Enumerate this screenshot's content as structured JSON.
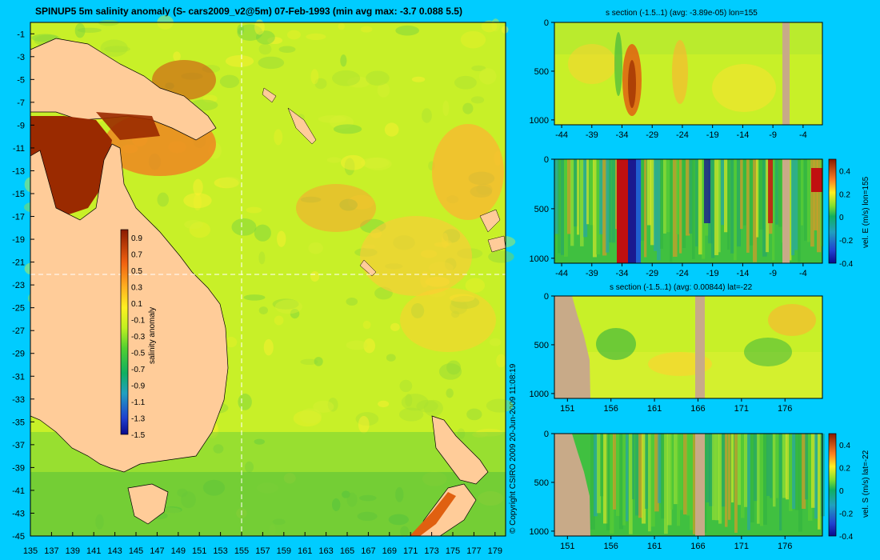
{
  "main_title": "SPINUP5 5m salinity anomaly (S- cars2009_v2@5m) 07-Feb-1993 (min avg max: -3.7 0.088 5.5)",
  "copyright": "© Copyright CSIRO 2009   20-Jun-2009 11:08:19",
  "colors": {
    "background": "#00ccff",
    "land": "#ffcc99",
    "section_land": "#c8aa88",
    "ocean_base": "#c8f028"
  },
  "chart_data": [
    {
      "type": "heatmap",
      "title": "SPINUP5 5m salinity anomaly (S- cars2009_v2@5m) 07-Feb-1993 (min avg max: -3.7 0.088 5.5)",
      "x_ticks": [
        "135",
        "137",
        "139",
        "141",
        "143",
        "145",
        "147",
        "149",
        "151",
        "153",
        "155",
        "157",
        "159",
        "161",
        "163",
        "165",
        "167",
        "169",
        "171",
        "173",
        "175",
        "177",
        "179"
      ],
      "y_ticks": [
        "-1",
        "-3",
        "-5",
        "-7",
        "-9",
        "-11",
        "-13",
        "-15",
        "-17",
        "-19",
        "-21",
        "-23",
        "-25",
        "-27",
        "-29",
        "-31",
        "-33",
        "-35",
        "-37",
        "-39",
        "-41",
        "-43",
        "-45"
      ],
      "xlim": [
        135,
        180
      ],
      "ylim": [
        -45,
        0
      ],
      "section_lines": {
        "lon": 155,
        "lat": -22
      },
      "colorbar": {
        "label": "salinity anomaly",
        "ticks": [
          "0.9",
          "0.7",
          "0.5",
          "0.3",
          "0.1",
          "-0.1",
          "-0.3",
          "-0.5",
          "-0.7",
          "-0.9",
          "-1.1",
          "-1.3",
          "-1.5"
        ],
        "range": [
          -1.5,
          1.0
        ]
      }
    },
    {
      "type": "heatmap",
      "title": "s section (-1.5..1) (avg: -3.89e-05) lon=155",
      "x_ticks": [
        "-44",
        "-39",
        "-34",
        "-29",
        "-24",
        "-19",
        "-14",
        "-9",
        "-4"
      ],
      "y_ticks": [
        "0",
        "500",
        "1000"
      ]
    },
    {
      "type": "heatmap",
      "title": "",
      "x_ticks": [
        "-44",
        "-39",
        "-34",
        "-29",
        "-24",
        "-19",
        "-14",
        "-9",
        "-4"
      ],
      "y_ticks": [
        "0",
        "500",
        "1000"
      ],
      "colorbar": {
        "label": "vel. E (m/s) lon=155",
        "ticks": [
          "0.4",
          "0.2",
          "0",
          "-0.2",
          "-0.4"
        ],
        "range": [
          -0.4,
          0.5
        ]
      }
    },
    {
      "type": "heatmap",
      "title": "s section (-1.5..1) (avg: 0.00844) lat=-22",
      "x_ticks": [
        "151",
        "156",
        "161",
        "166",
        "171",
        "176"
      ],
      "y_ticks": [
        "0",
        "500",
        "1000"
      ]
    },
    {
      "type": "heatmap",
      "title": "",
      "x_ticks": [
        "151",
        "156",
        "161",
        "166",
        "171",
        "176"
      ],
      "y_ticks": [
        "0",
        "500",
        "1000"
      ],
      "colorbar": {
        "label": "vel. S (m/s) lat=-22",
        "ticks": [
          "0.4",
          "0.2",
          "0",
          "-0.2",
          "-0.4"
        ],
        "range": [
          -0.4,
          0.5
        ]
      }
    }
  ]
}
